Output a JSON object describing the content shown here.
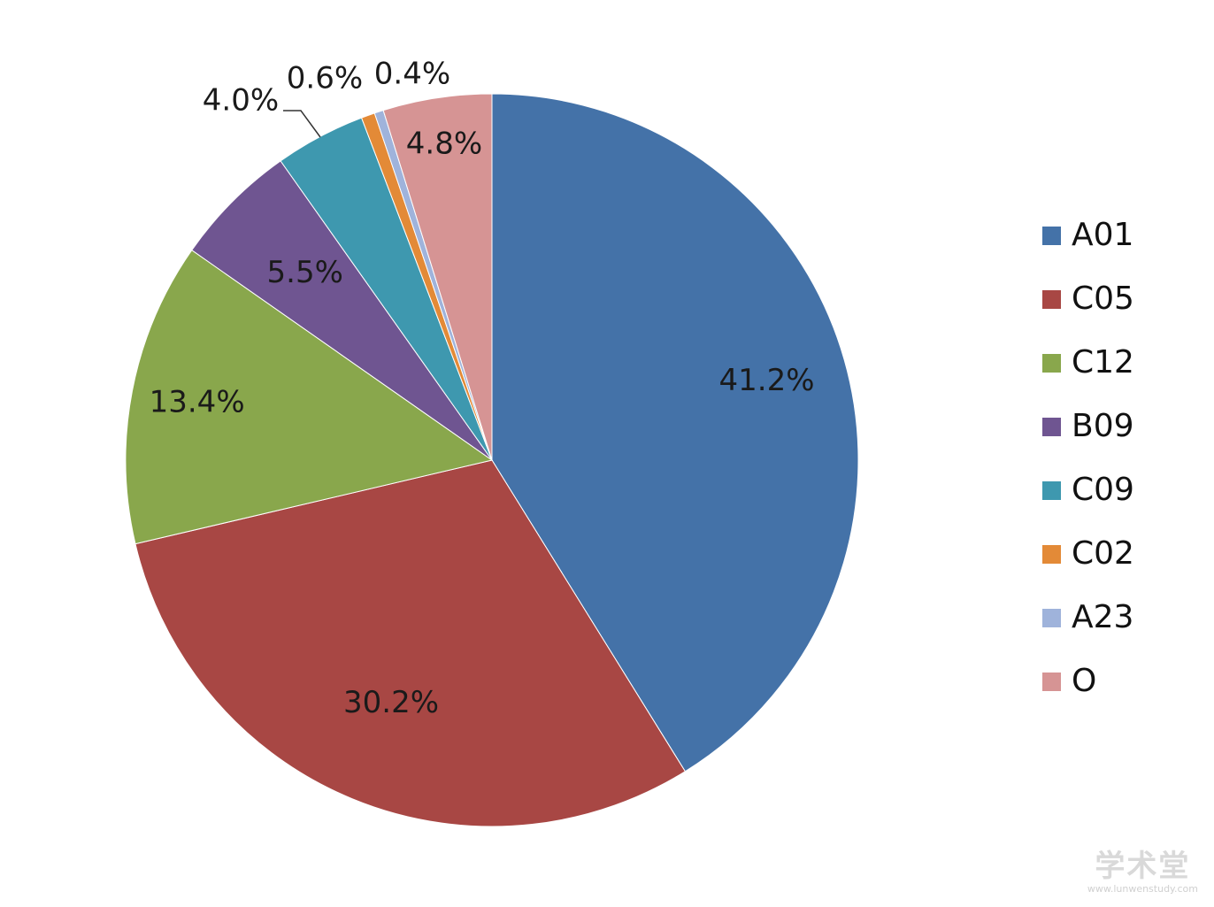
{
  "chart_data": {
    "type": "pie",
    "start_angle_deg": 0,
    "direction": "clockwise",
    "legend_position": "right",
    "slices": [
      {
        "name": "A01",
        "value": 41.2,
        "label": "41.2%",
        "color": "#4472A8"
      },
      {
        "name": "C05",
        "value": 30.2,
        "label": "30.2%",
        "color": "#A84744"
      },
      {
        "name": "C12",
        "value": 13.4,
        "label": "13.4%",
        "color": "#89A74C"
      },
      {
        "name": "B09",
        "value": 5.5,
        "label": "5.5%",
        "color": "#6F5591"
      },
      {
        "name": "C09",
        "value": 4.0,
        "label": "4.0%",
        "color": "#3E98AF"
      },
      {
        "name": "C02",
        "value": 0.6,
        "label": "0.6%",
        "color": "#E38A37"
      },
      {
        "name": "A23",
        "value": 0.4,
        "label": "0.4%",
        "color": "#9FB3DB"
      },
      {
        "name": "O",
        "value": 4.8,
        "label": "4.8%",
        "color": "#D69494"
      }
    ]
  },
  "watermark": {
    "logo_text": "学术堂",
    "url_text": "www.lunwenstudy.com"
  }
}
